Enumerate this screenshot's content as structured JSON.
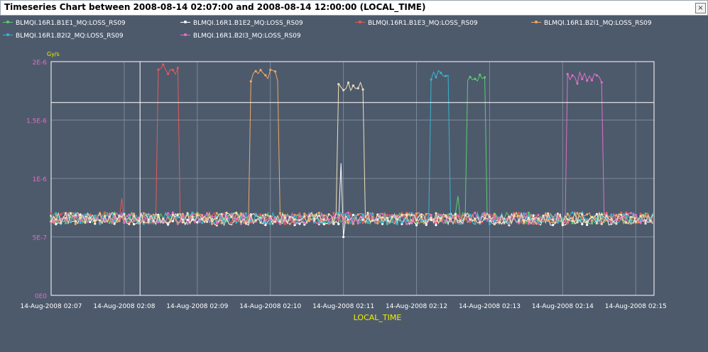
{
  "window": {
    "title": "Timeseries Chart between 2008-08-14 02:07:00 and 2008-08-14 12:00:00 (LOCAL_TIME)",
    "close_label": "×"
  },
  "colors": {
    "background": "#4d5a6c",
    "plot_background": "#4d5a6c",
    "grid": "#7c8899",
    "axis": "#ffffff",
    "tick_label_y": "#e56cc3",
    "tick_label_x": "#ffffff",
    "unit_label": "#f0f000",
    "axis_title": "#f0f000"
  },
  "chart_data": {
    "type": "line",
    "title": "Timeseries Chart between 2008-08-14 02:07:00 and 2008-08-14 12:00:00 (LOCAL_TIME)",
    "xlabel": "LOCAL_TIME",
    "ylabel": "Gy/s",
    "ylim": [
      0,
      2e-06
    ],
    "yticks": [
      0,
      5e-07,
      1e-06,
      1.5e-06,
      2e-06
    ],
    "ytick_labels": [
      "0E0",
      "5E-7",
      "1E-6",
      "1.5E-6",
      "2E-6"
    ],
    "xlim": [
      "2008-08-14 02:07:00",
      "2008-08-14 02:15:15"
    ],
    "xticks": [
      "2008-08-14 02:07:00",
      "2008-08-14 02:08:00",
      "2008-08-14 02:09:00",
      "2008-08-14 02:10:00",
      "2008-08-14 02:11:00",
      "2008-08-14 02:12:00",
      "2008-08-14 02:13:00",
      "2008-08-14 02:14:00",
      "2008-08-14 02:15:00"
    ],
    "xtick_labels": [
      "14-Aug-2008 02:07",
      "14-Aug-2008 02:08",
      "14-Aug-2008 02:09",
      "14-Aug-2008 02:10",
      "14-Aug-2008 02:11",
      "14-Aug-2008 02:12",
      "14-Aug-2008 02:13",
      "14-Aug-2008 02:14",
      "14-Aug-2008 02:15"
    ],
    "grid": true,
    "legend_position": "top",
    "crosshair": {
      "x": "2008-08-14 02:08:13",
      "y": 1.65e-06
    },
    "series": [
      {
        "name": "BLMQI.16R1.B1E1_MQ:LOSS_RS09",
        "color": "#5ccc73",
        "baseline": 6.6e-07,
        "pulse": {
          "start": "2008-08-14 02:12:42",
          "end": "2008-08-14 02:12:57",
          "level": 1.84e-06
        },
        "spikes": [
          {
            "t": "2008-08-14 02:12:34",
            "v": 8.5e-07
          }
        ]
      },
      {
        "name": "BLMQI.16R1.B1E2_MQ:LOSS_RS09",
        "color": "#ffffff",
        "baseline": 6.5e-07,
        "pulse": null,
        "spikes": [
          {
            "t": "2008-08-14 02:10:58",
            "v": 1.13e-06
          },
          {
            "t": "2008-08-14 02:11:00",
            "v": 5e-07
          }
        ]
      },
      {
        "name": "BLMQI.16R1.B1E3_MQ:LOSS_RS09",
        "color": "#e05c5c",
        "baseline": 6.6e-07,
        "pulse": {
          "start": "2008-08-14 02:08:28",
          "end": "2008-08-14 02:08:44",
          "level": 1.93e-06
        },
        "spikes": [
          {
            "t": "2008-08-14 02:07:58",
            "v": 8.3e-07
          }
        ]
      },
      {
        "name": "BLMQI.16R1.B2I1_MQ:LOSS_RS09",
        "color": "#f0a868",
        "baseline": 6.6e-07,
        "pulse": {
          "start": "2008-08-14 02:09:44",
          "end": "2008-08-14 02:10:07",
          "level": 1.88e-06
        },
        "spikes": []
      },
      {
        "name": "BLMQI.16R1.B2I2_MQ:LOSS_RS09",
        "color": "#38b4d0",
        "baseline": 6.6e-07,
        "pulse": {
          "start": "2008-08-14 02:12:11",
          "end": "2008-08-14 02:12:26",
          "level": 1.89e-06
        },
        "spikes": []
      },
      {
        "name": "BLMQI.16R1.B2I3_MQ:LOSS_RS09",
        "color": "#e070c8",
        "baseline": 6.6e-07,
        "pulse": {
          "start": "2008-08-14 02:14:04",
          "end": "2008-08-14 02:14:32",
          "level": 1.86e-06
        },
        "spikes": []
      },
      {
        "name": "",
        "color": "#f0e0b8",
        "baseline": 6.6e-07,
        "pulse": {
          "start": "2008-08-14 02:10:55",
          "end": "2008-08-14 02:11:17",
          "level": 1.8e-06
        },
        "spikes": []
      }
    ]
  }
}
